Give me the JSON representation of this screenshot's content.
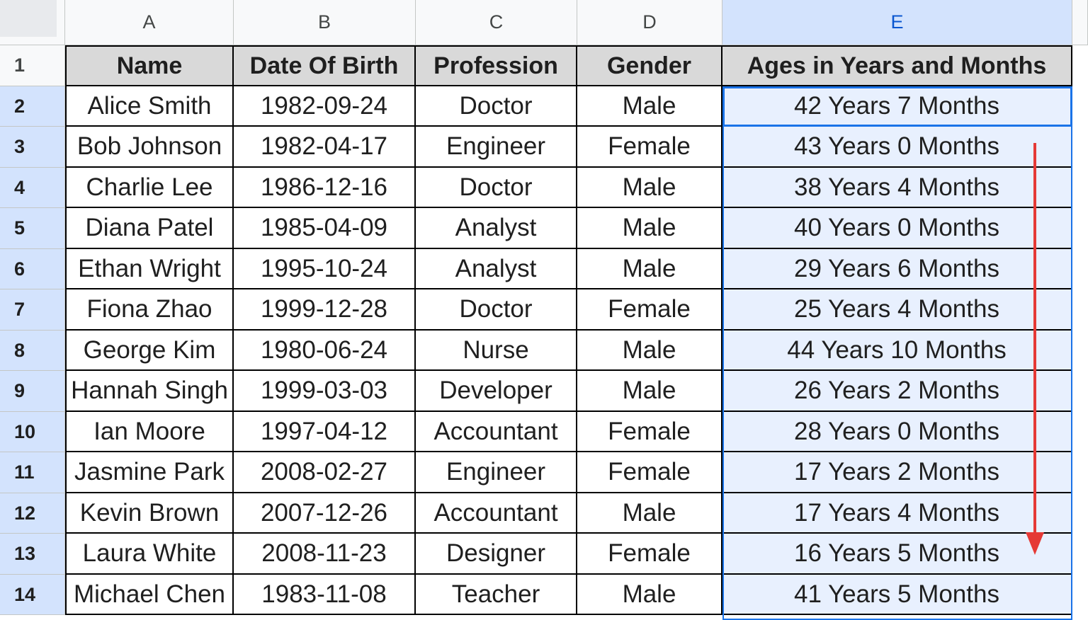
{
  "columns": [
    "A",
    "B",
    "C",
    "D",
    "E"
  ],
  "selected_column": "E",
  "header_row": {
    "row_number": "1",
    "cells": [
      "Name",
      "Date Of Birth",
      "Profession",
      "Gender",
      "Ages in Years and Months"
    ]
  },
  "rows": [
    {
      "n": "2",
      "cells": [
        "Alice Smith",
        "1982-09-24",
        "Doctor",
        "Male",
        "42 Years 7 Months"
      ]
    },
    {
      "n": "3",
      "cells": [
        "Bob Johnson",
        "1982-04-17",
        "Engineer",
        "Female",
        "43 Years 0 Months"
      ]
    },
    {
      "n": "4",
      "cells": [
        "Charlie Lee",
        "1986-12-16",
        "Doctor",
        "Male",
        "38 Years 4 Months"
      ]
    },
    {
      "n": "5",
      "cells": [
        "Diana Patel",
        "1985-04-09",
        "Analyst",
        "Male",
        "40 Years 0 Months"
      ]
    },
    {
      "n": "6",
      "cells": [
        "Ethan Wright",
        "1995-10-24",
        "Analyst",
        "Male",
        "29 Years 6 Months"
      ]
    },
    {
      "n": "7",
      "cells": [
        "Fiona Zhao",
        "1999-12-28",
        "Doctor",
        "Female",
        "25 Years 4 Months"
      ]
    },
    {
      "n": "8",
      "cells": [
        "George Kim",
        "1980-06-24",
        "Nurse",
        "Male",
        "44 Years 10 Months"
      ]
    },
    {
      "n": "9",
      "cells": [
        "Hannah Singh",
        "1999-03-03",
        "Developer",
        "Male",
        "26 Years 2 Months"
      ]
    },
    {
      "n": "10",
      "cells": [
        "Ian Moore",
        "1997-04-12",
        "Accountant",
        "Female",
        "28 Years 0 Months"
      ]
    },
    {
      "n": "11",
      "cells": [
        "Jasmine Park",
        "2008-02-27",
        "Engineer",
        "Female",
        "17 Years 2 Months"
      ]
    },
    {
      "n": "12",
      "cells": [
        "Kevin Brown",
        "2007-12-26",
        "Accountant",
        "Male",
        "17 Years 4 Months"
      ]
    },
    {
      "n": "13",
      "cells": [
        "Laura White",
        "2008-11-23",
        "Designer",
        "Female",
        "16 Years 5 Months"
      ]
    },
    {
      "n": "14",
      "cells": [
        "Michael Chen",
        "1983-11-08",
        "Teacher",
        "Male",
        "41 Years 5 Months"
      ]
    }
  ],
  "colors": {
    "selection": "#1a73e8",
    "selected_fill": "#e8f0fe",
    "header_fill": "#d9d9d9",
    "annotation_arrow": "#e53935"
  },
  "annotation": {
    "icon": "down-arrow-icon"
  }
}
